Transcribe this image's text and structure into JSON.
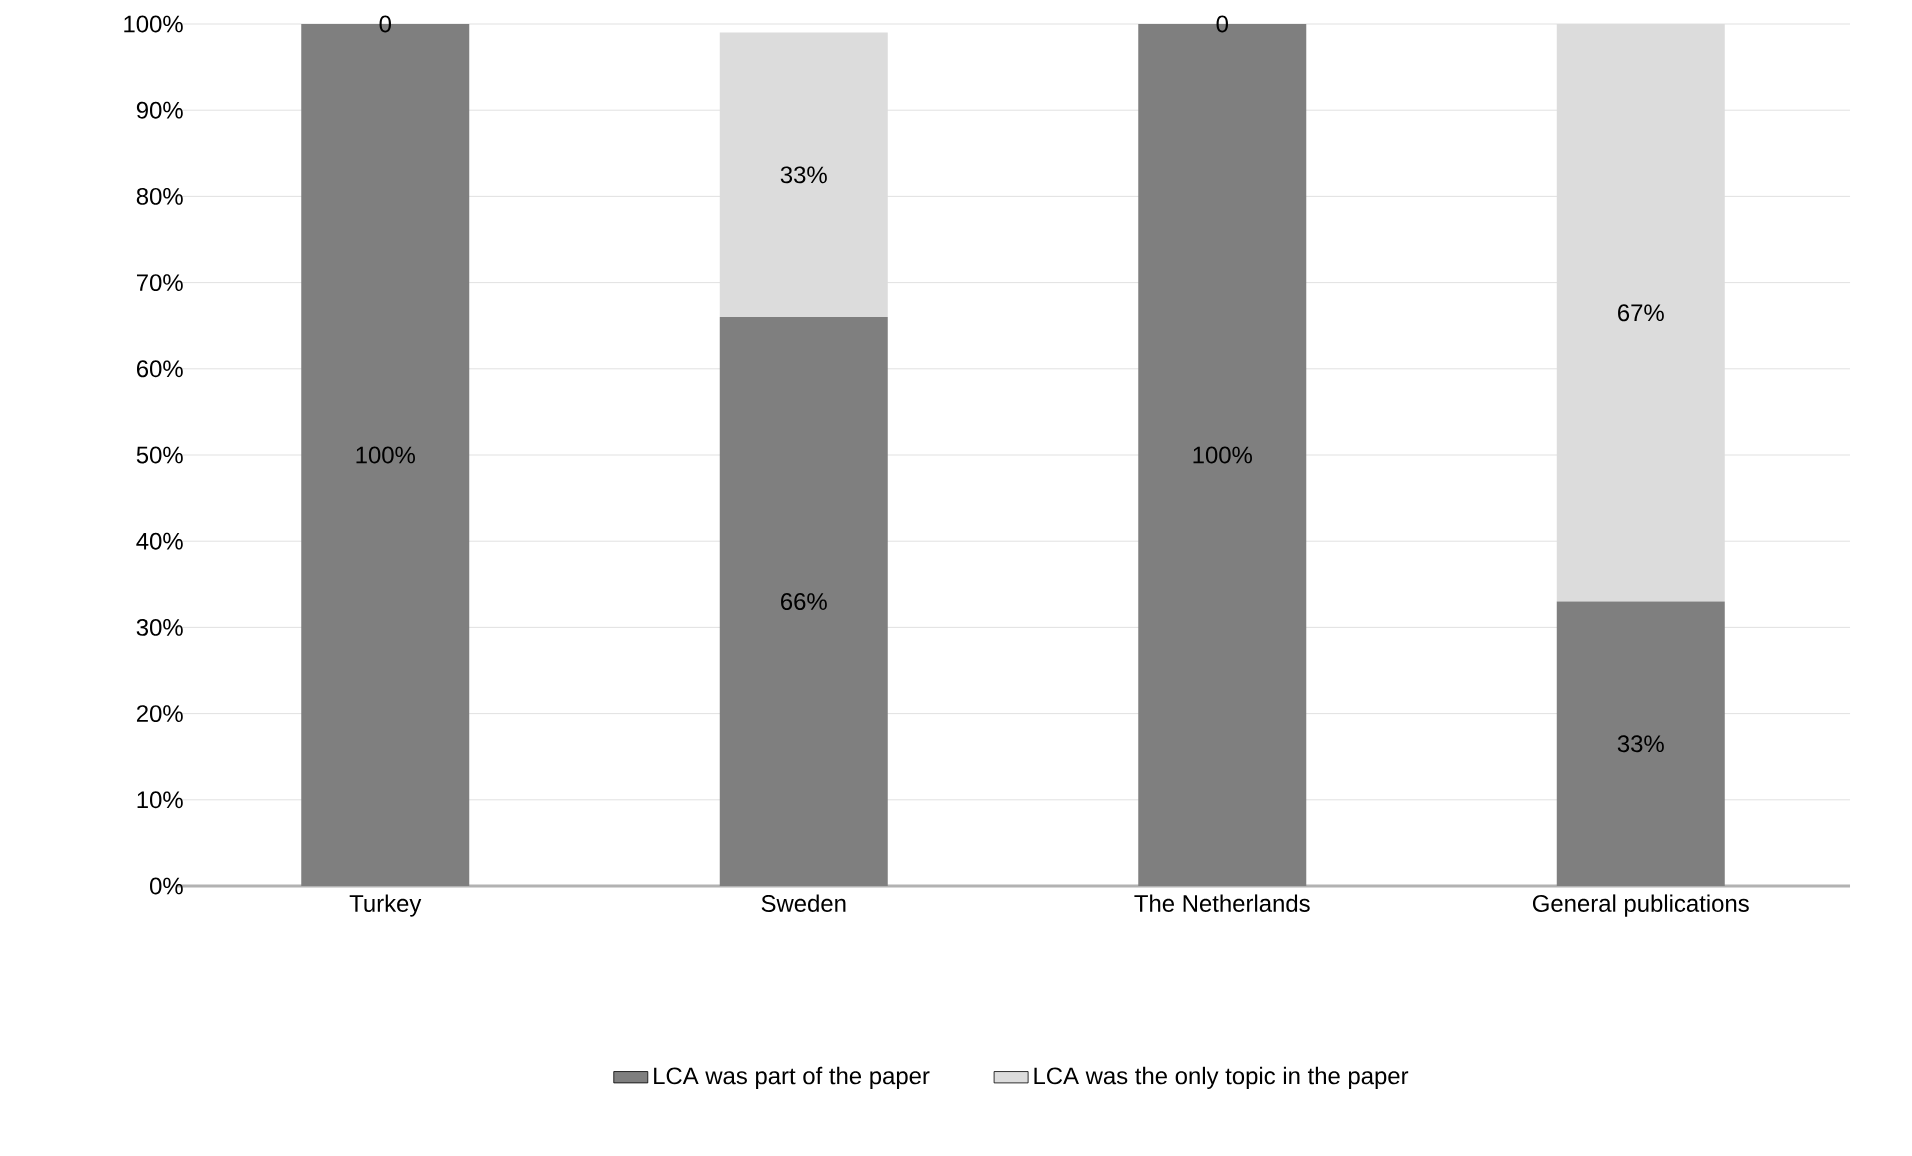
{
  "chart_data": {
    "type": "bar",
    "stacked": true,
    "categories": [
      "Turkey",
      "Sweden",
      "The Netherlands",
      "General publications"
    ],
    "series": [
      {
        "name": "LCA was part of the paper",
        "color": "#7f7f7f",
        "values": [
          100,
          66,
          100,
          33
        ],
        "value_labels": [
          "100%",
          "66%",
          "100%",
          "33%"
        ]
      },
      {
        "name": "LCA was the only topic in the paper",
        "color": "#dcdcdc",
        "values": [
          0,
          33,
          0,
          67
        ],
        "value_labels": [
          "0",
          "33%",
          "0",
          "67%"
        ]
      }
    ],
    "ylim": [
      0,
      100
    ],
    "yticks": [
      {
        "value": 0,
        "label": "0%"
      },
      {
        "value": 10,
        "label": "10%"
      },
      {
        "value": 20,
        "label": "20%"
      },
      {
        "value": 30,
        "label": "30%"
      },
      {
        "value": 40,
        "label": "40%"
      },
      {
        "value": 50,
        "label": "50%"
      },
      {
        "value": 60,
        "label": "60%"
      },
      {
        "value": 70,
        "label": "70%"
      },
      {
        "value": 80,
        "label": "80%"
      },
      {
        "value": 90,
        "label": "90%"
      },
      {
        "value": 100,
        "label": "100%"
      }
    ],
    "grid": "y",
    "legend": "bottom"
  }
}
